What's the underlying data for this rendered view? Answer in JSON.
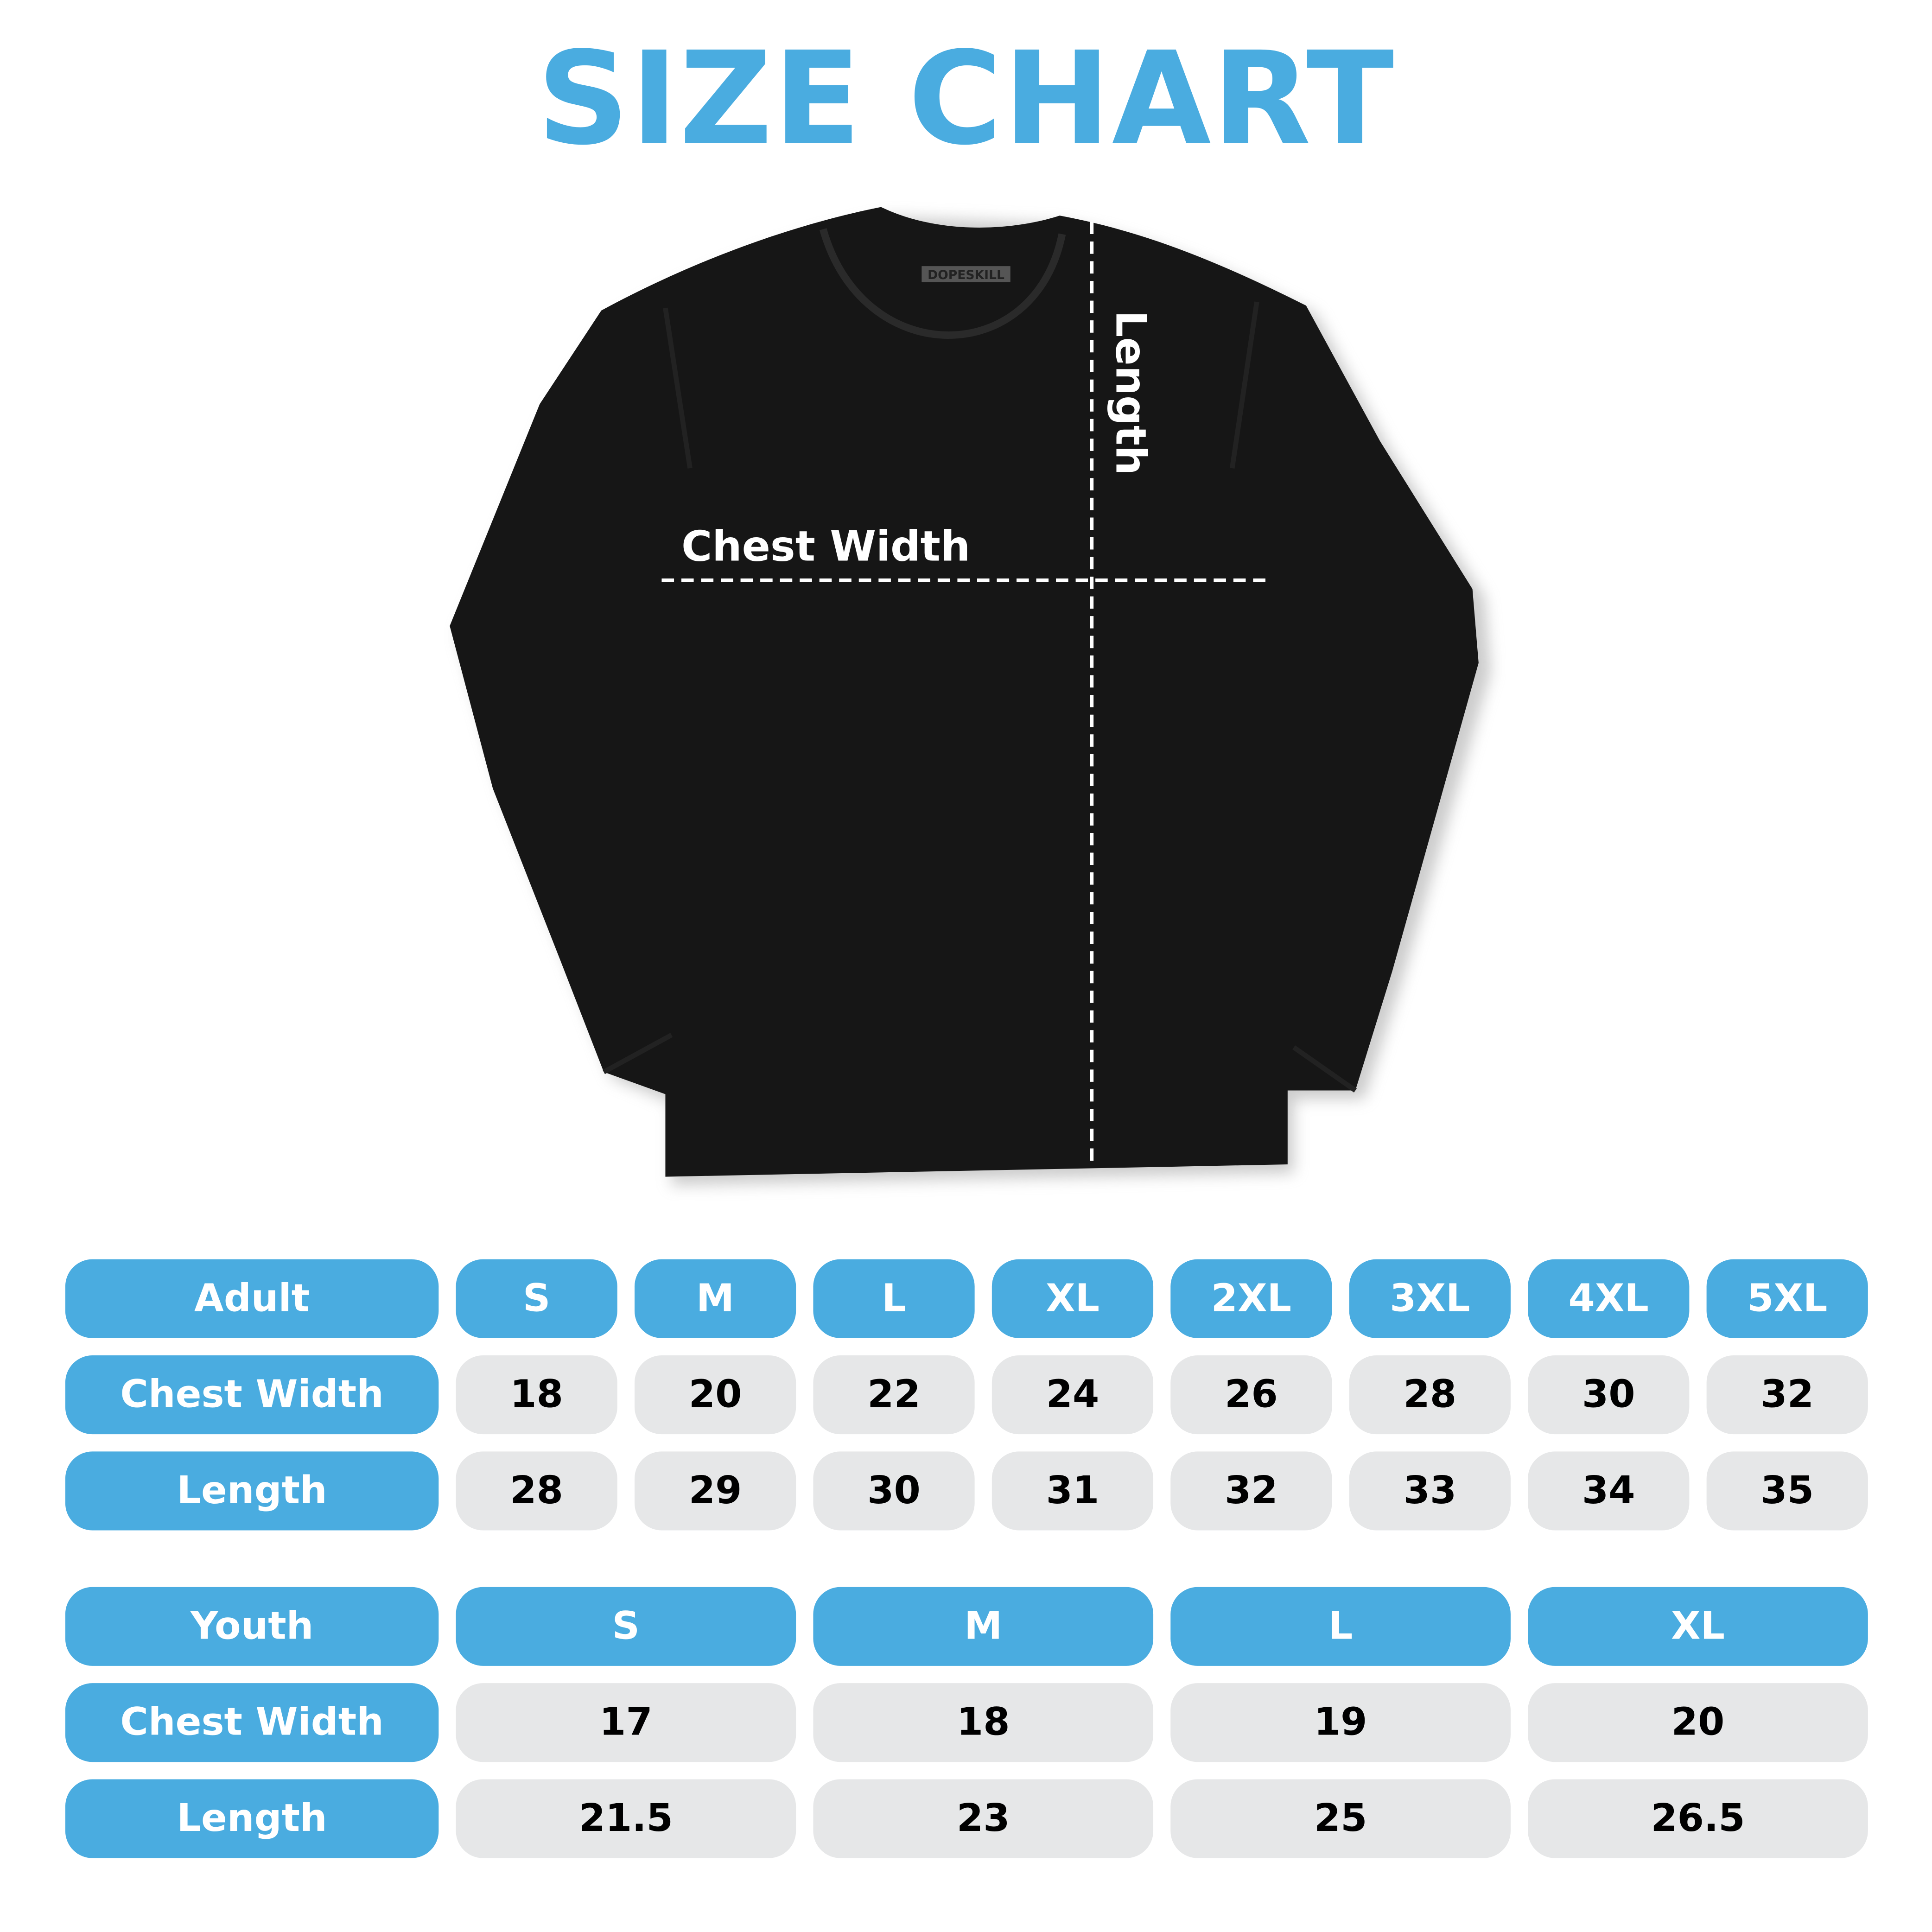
{
  "title": "SIZE CHART",
  "brand_tag": "DOPESKILL",
  "diagram": {
    "chest_label": "Chest Width",
    "length_label": "Length"
  },
  "colors": {
    "accent": "#4aace0",
    "cell_bg": "#e6e7e8",
    "shirt": "#141414"
  },
  "adult": {
    "header": "Adult",
    "sizes": [
      "S",
      "M",
      "L",
      "XL",
      "2XL",
      "3XL",
      "4XL",
      "5XL"
    ],
    "rows": [
      {
        "label": "Chest Width",
        "values": [
          "18",
          "20",
          "22",
          "24",
          "26",
          "28",
          "30",
          "32"
        ]
      },
      {
        "label": "Length",
        "values": [
          "28",
          "29",
          "30",
          "31",
          "32",
          "33",
          "34",
          "35"
        ]
      }
    ]
  },
  "youth": {
    "header": "Youth",
    "sizes": [
      "S",
      "M",
      "L",
      "XL"
    ],
    "rows": [
      {
        "label": "Chest Width",
        "values": [
          "17",
          "18",
          "19",
          "20"
        ]
      },
      {
        "label": "Length",
        "values": [
          "21.5",
          "23",
          "25",
          "26.5"
        ]
      }
    ]
  }
}
